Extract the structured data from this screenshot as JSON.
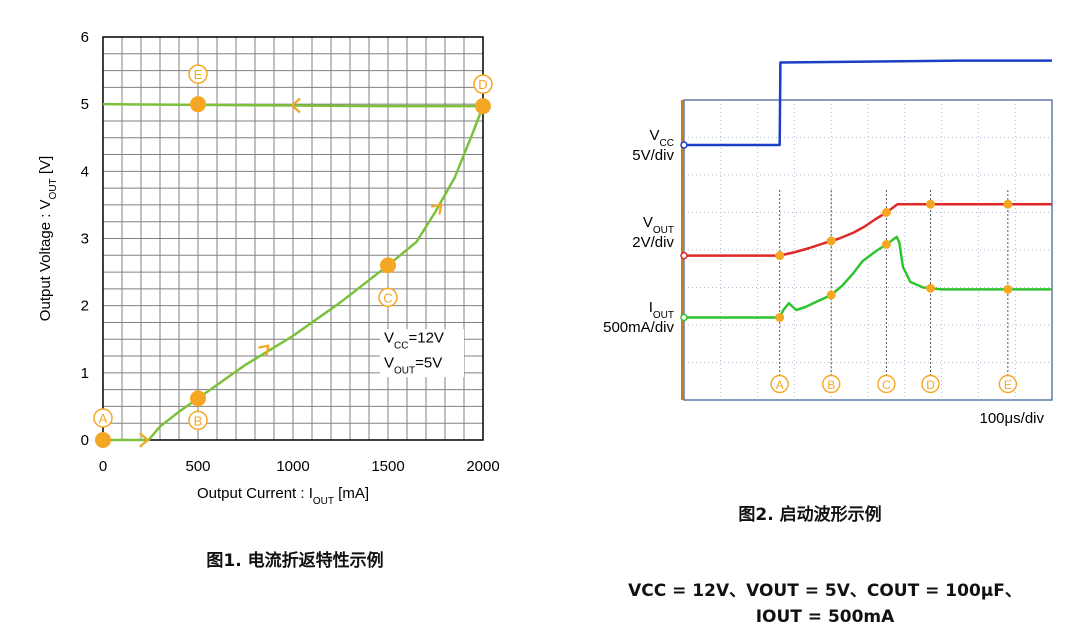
{
  "chart_data": [
    {
      "type": "line",
      "title": "",
      "xlabel": "Output Current : I",
      "xlabel_sub": "OUT",
      "xlabel_unit": " [mA]",
      "ylabel": "Output Voltage : V",
      "ylabel_sub": "OUT",
      "ylabel_unit": " [V]",
      "xlim": [
        0,
        2000
      ],
      "ylim": [
        0,
        6
      ],
      "x_ticks": [
        0,
        500,
        1000,
        1500,
        2000
      ],
      "y_ticks": [
        0,
        1,
        2,
        3,
        4,
        5,
        6
      ],
      "grid": true,
      "series": [
        {
          "color": "#7dc03b",
          "x": [
            0,
            240,
            300,
            400,
            500,
            750,
            1000,
            1250,
            1500,
            1650,
            1750,
            1850,
            1950,
            2000,
            1500,
            1000,
            500,
            0
          ],
          "y": [
            0,
            0,
            0.2,
            0.42,
            0.62,
            1.12,
            1.55,
            2.05,
            2.6,
            2.95,
            3.4,
            3.9,
            4.6,
            4.97,
            4.97,
            4.98,
            4.99,
            5.0
          ]
        }
      ],
      "points": [
        {
          "label": "A",
          "x": 0,
          "y": 0
        },
        {
          "label": "B",
          "x": 500,
          "y": 0.62
        },
        {
          "label": "C",
          "x": 1500,
          "y": 2.6
        },
        {
          "label": "D",
          "x": 2000,
          "y": 4.97
        },
        {
          "label": "E",
          "x": 500,
          "y": 5.0
        }
      ],
      "annotation": {
        "line1_pre": "V",
        "line1_sub": "CC",
        "line1_val": "=12V",
        "line2_pre": "V",
        "line2_sub": "OUT",
        "line2_val": "=5V"
      },
      "caption": "图1. 电流折返特性示例"
    },
    {
      "type": "line",
      "title": "",
      "timebase": "100μs/div",
      "x_divisions": 10,
      "y_divisions": 8,
      "grid": true,
      "series": [
        {
          "name_main": "V",
          "name_sub": "CC",
          "scale": "5V/div",
          "color": "#1a3fc4",
          "x": [
            0,
            2.6,
            2.62,
            7.5,
            10
          ],
          "y": [
            2.8,
            2.8,
            5.0,
            5.05,
            5.05
          ]
        },
        {
          "name_main": "V",
          "name_sub": "OUT",
          "scale": "2V/div",
          "color": "#e02828",
          "x": [
            0,
            2.6,
            3.0,
            3.4,
            3.8,
            4.2,
            4.6,
            4.9,
            5.2,
            5.5,
            5.8,
            6.2,
            7.0,
            8.0,
            9.0,
            10
          ],
          "y": [
            -0.15,
            -0.15,
            -0.06,
            0.05,
            0.18,
            0.3,
            0.46,
            0.62,
            0.82,
            1.0,
            1.22,
            1.22,
            1.22,
            1.22,
            1.22,
            1.22
          ]
        },
        {
          "name_main": "I",
          "name_sub": "OUT",
          "scale": "500mA/div",
          "color": "#2fc42f",
          "x": [
            0,
            2.6,
            2.7,
            2.85,
            3.05,
            3.3,
            3.6,
            4.0,
            4.3,
            4.6,
            4.85,
            5.2,
            5.55,
            5.78,
            5.85,
            5.95,
            6.15,
            6.5,
            7.0,
            8.0,
            10
          ],
          "y": [
            -1.8,
            -1.8,
            -1.6,
            -1.42,
            -1.6,
            -1.52,
            -1.38,
            -1.2,
            -0.95,
            -0.62,
            -0.3,
            -0.04,
            0.18,
            0.35,
            0.2,
            -0.45,
            -0.85,
            -1.0,
            -1.05,
            -1.05,
            -1.05
          ]
        }
      ],
      "markers": [
        {
          "label": "A",
          "x": 2.6
        },
        {
          "label": "B",
          "x": 4.0
        },
        {
          "label": "C",
          "x": 5.5
        },
        {
          "label": "D",
          "x": 6.7
        },
        {
          "label": "E",
          "x": 8.8
        }
      ],
      "caption": "图2. 启动波形示例"
    }
  ],
  "conditions_line1": "VCC = 12V、VOUT = 5V、COUT = 100μF、",
  "conditions_line2": "IOUT = 500mA"
}
